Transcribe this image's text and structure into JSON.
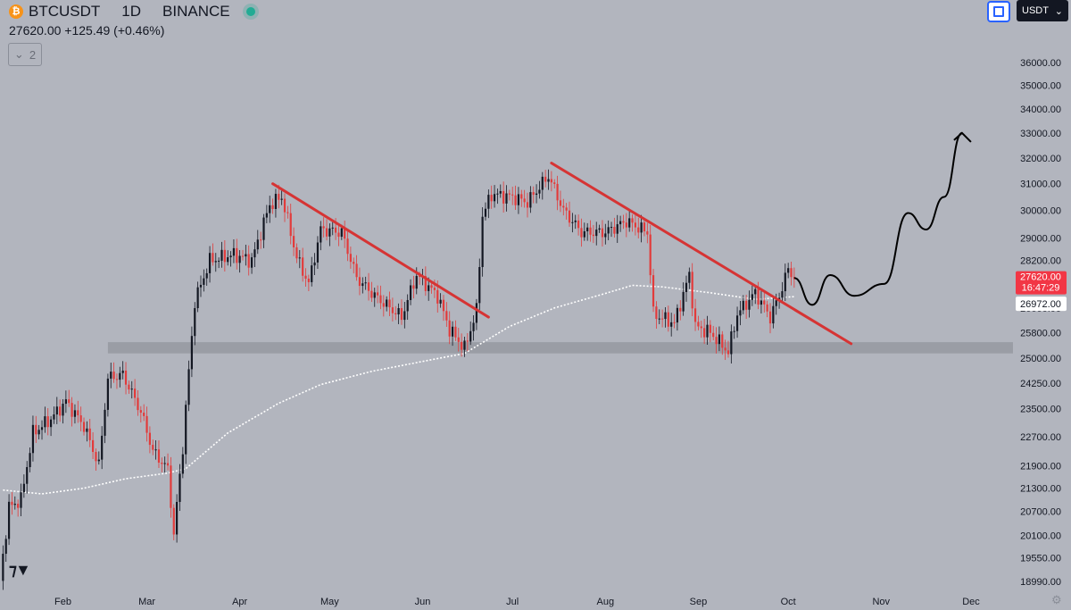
{
  "header": {
    "coin_glyph": "₿",
    "symbol": "BTCUSDT",
    "interval": "1D",
    "exchange": "BINANCE",
    "price_line": "27620.00 +125.49 (+0.46%)",
    "collapse_count": "2",
    "currency": "USDT"
  },
  "colors": {
    "background": "#b2b5be",
    "up_candle": "#ffffff",
    "down_candle": "#e23b3b",
    "trendline": "#d63434",
    "support_zone": "#9a9da5",
    "moving_average": "#ffffff",
    "current_price_tag": "#f23645"
  },
  "chart_data": {
    "type": "candlestick",
    "symbol": "BTCUSDT",
    "interval": "1D",
    "exchange": "BINANCE",
    "x_ticks": [
      "Feb",
      "Mar",
      "Apr",
      "May",
      "Jun",
      "Jul",
      "Aug",
      "Sep",
      "Oct",
      "Nov",
      "Dec"
    ],
    "y_ticks": [
      "36000.00",
      "35000.00",
      "34000.00",
      "33000.00",
      "32000.00",
      "31000.00",
      "30000.00",
      "29000.00",
      "28200.00",
      "27400.00",
      "26600.00",
      "25800.00",
      "25000.00",
      "24250.00",
      "23500.00",
      "22700.00",
      "21900.00",
      "21300.00",
      "20700.00",
      "20100.00",
      "19550.00",
      "18990.00"
    ],
    "price_scale": "log",
    "ylim": [
      18800,
      37000
    ],
    "xlim": [
      "2023-01-11",
      "2023-12-15"
    ],
    "current_price": {
      "value": 27620,
      "label": "27620.00",
      "countdown": "16:47:29"
    },
    "ma_tag": {
      "value": 26972,
      "label": "26972.00"
    },
    "moving_average": [
      {
        "date": "2023-01-12",
        "value": 21250
      },
      {
        "date": "2023-01-25",
        "value": 21150
      },
      {
        "date": "2023-02-08",
        "value": 21300
      },
      {
        "date": "2023-02-22",
        "value": 21550
      },
      {
        "date": "2023-03-08",
        "value": 21700
      },
      {
        "date": "2023-03-14",
        "value": 21820
      },
      {
        "date": "2023-03-28",
        "value": 22800
      },
      {
        "date": "2023-04-14",
        "value": 23650
      },
      {
        "date": "2023-04-28",
        "value": 24200
      },
      {
        "date": "2023-05-15",
        "value": 24600
      },
      {
        "date": "2023-06-01",
        "value": 24900
      },
      {
        "date": "2023-06-15",
        "value": 25150
      },
      {
        "date": "2023-06-30",
        "value": 26000
      },
      {
        "date": "2023-07-15",
        "value": 26600
      },
      {
        "date": "2023-07-31",
        "value": 27050
      },
      {
        "date": "2023-08-10",
        "value": 27350
      },
      {
        "date": "2023-08-20",
        "value": 27300
      },
      {
        "date": "2023-09-05",
        "value": 27100
      },
      {
        "date": "2023-09-20",
        "value": 26880
      },
      {
        "date": "2023-10-03",
        "value": 26972
      }
    ],
    "trendlines": [
      {
        "start": {
          "date": "2023-04-12",
          "price": 31000
        },
        "end": {
          "date": "2023-06-23",
          "price": 26300
        }
      },
      {
        "start": {
          "date": "2023-07-14",
          "price": 31800
        },
        "end": {
          "date": "2023-10-22",
          "price": 25450
        }
      }
    ],
    "support_zone": {
      "from_date": "2023-02-16",
      "to_date": "2023-12-15",
      "low": 25150,
      "high": 25500
    },
    "projection_path": [
      {
        "date": "2023-10-03",
        "price": 27600
      },
      {
        "date": "2023-10-09",
        "price": 26700
      },
      {
        "date": "2023-10-15",
        "price": 27700
      },
      {
        "date": "2023-10-23",
        "price": 27000
      },
      {
        "date": "2023-11-02",
        "price": 27400
      },
      {
        "date": "2023-11-10",
        "price": 29900
      },
      {
        "date": "2023-11-16",
        "price": 29300
      },
      {
        "date": "2023-11-22",
        "price": 30500
      },
      {
        "date": "2023-11-28",
        "price": 33000
      }
    ],
    "grid": false,
    "legend": "none"
  }
}
